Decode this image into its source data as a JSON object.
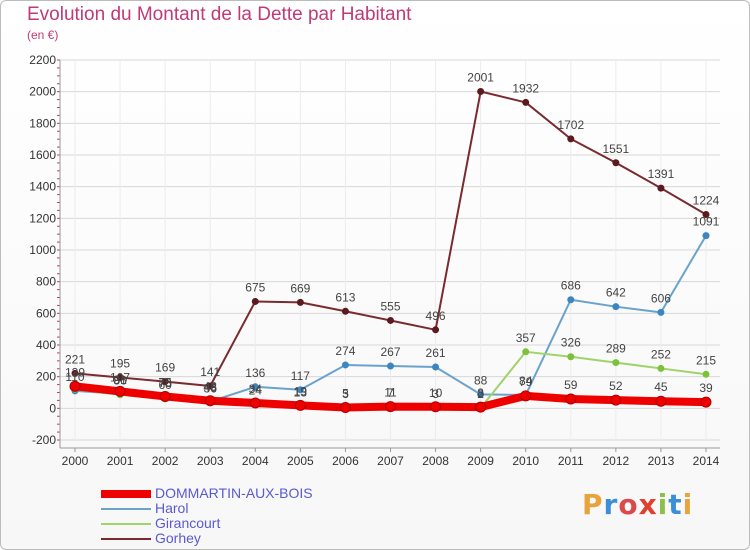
{
  "header": {
    "title": "Evolution du Montant de la Dette par Habitant",
    "subtitle": "(en €)"
  },
  "logo": {
    "text": "Proxiti",
    "colors": [
      "#e8a33c",
      "#3c8fd6",
      "#d94a4a",
      "#e04030",
      "#8cc04a",
      "#3c8fd6",
      "#e8a33c"
    ]
  },
  "colors": {
    "title": "#c03a77",
    "grid": "#d8d8d8",
    "axis_text": "#333333",
    "label_text": "#444444"
  },
  "chart_data": {
    "type": "line",
    "title": "Evolution du Montant de la Dette par Habitant",
    "subtitle": "(en €)",
    "x": [
      2000,
      2001,
      2002,
      2003,
      2004,
      2005,
      2006,
      2007,
      2008,
      2009,
      2010,
      2011,
      2012,
      2013,
      2014
    ],
    "xlabel": "",
    "ylabel": "",
    "ylim": [
      -200,
      2200
    ],
    "yticks": [
      -200,
      0,
      200,
      400,
      600,
      800,
      1000,
      1200,
      1400,
      1600,
      1800,
      2000,
      2200
    ],
    "grid": true,
    "legend": "bottom-left",
    "series": [
      {
        "name": "Gorhey",
        "color": "#7a2b2f",
        "marker": "#5a1a1e",
        "values": [
          221,
          195,
          169,
          141,
          675,
          669,
          613,
          555,
          496,
          2001,
          1932,
          1702,
          1551,
          1391,
          1224
        ],
        "labels": [
          "221",
          "195",
          "169",
          "141",
          "675",
          "669",
          "613",
          "555",
          "496",
          "2001",
          "1932",
          "1702",
          "1551",
          "1391",
          "1224"
        ]
      },
      {
        "name": "Harol",
        "color": "#6aa3cc",
        "marker": "#3d85c0",
        "values": [
          110,
          91,
          73,
          43,
          136,
          117,
          274,
          267,
          261,
          88,
          84,
          686,
          642,
          606,
          1091
        ],
        "labels": [
          "110",
          "91",
          "73",
          "43",
          "136",
          "117",
          "274",
          "267",
          "261",
          "88",
          "84",
          "686",
          "642",
          "606",
          "1091"
        ]
      },
      {
        "name": "Girancourt",
        "color": "#9fd46a",
        "marker": "#7cc03c",
        "values": [
          120,
          86,
          60,
          36,
          24,
          13,
          3,
          7,
          3,
          2,
          357,
          326,
          289,
          252,
          215
        ],
        "labels": [
          "",
          "86",
          "60",
          "36",
          "24",
          "13",
          "3",
          "7",
          "3",
          "2",
          "357",
          "326",
          "289",
          "252",
          "215"
        ]
      },
      {
        "name": "DOMMARTIN-AUX-BOIS",
        "color": "#ee0000",
        "marker": "#ee0000",
        "thick": true,
        "values": [
          139,
          107,
          75,
          48,
          34,
          19,
          5,
          11,
          10,
          8,
          79,
          59,
          52,
          45,
          39
        ],
        "labels": [
          "139",
          "107",
          "75",
          "48",
          "34",
          "19",
          "5",
          "11",
          "10",
          "8",
          "79",
          "59",
          "52",
          "45",
          "39"
        ]
      }
    ]
  },
  "legend_items": [
    {
      "name": "DOMMARTIN-AUX-BOIS",
      "color": "#ee0000",
      "text_color": "#5a5ad0",
      "thick": true
    },
    {
      "name": "Harol",
      "color": "#6aa3cc",
      "text_color": "#5a5ad0",
      "thick": false
    },
    {
      "name": "Girancourt",
      "color": "#9fd46a",
      "text_color": "#5a5ad0",
      "thick": false
    },
    {
      "name": "Gorhey",
      "color": "#7a2b2f",
      "text_color": "#5a5ad0",
      "thick": false
    }
  ]
}
